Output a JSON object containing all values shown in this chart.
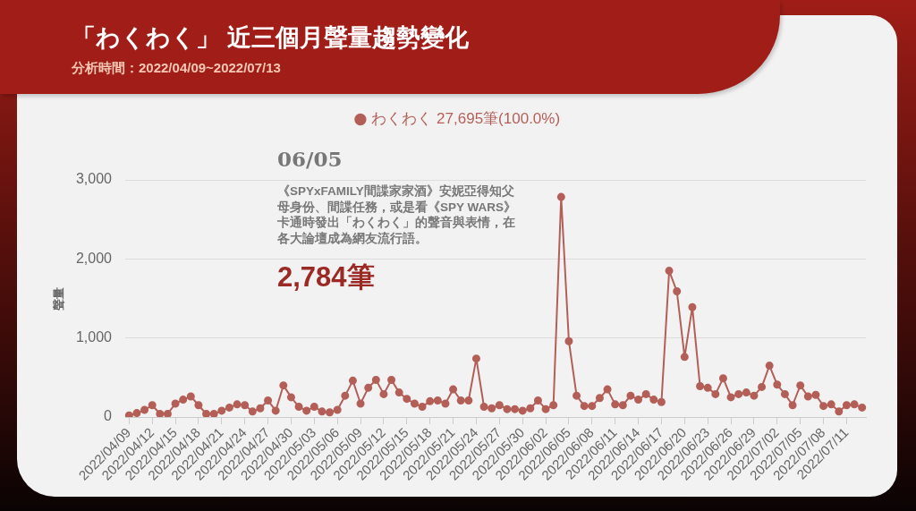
{
  "chart_data": {
    "type": "line",
    "title": "「わくわく」 近三個月聲量趨勢變化",
    "subtitle": "分析時間：2022/04/09~2022/07/13",
    "ylabel": "聲量",
    "categories": [
      "2022/04/09",
      null,
      null,
      "2022/04/12",
      null,
      null,
      "2022/04/15",
      null,
      null,
      "2022/04/18",
      null,
      null,
      "2022/04/21",
      null,
      null,
      "2022/04/24",
      null,
      null,
      "2022/04/27",
      null,
      null,
      "2022/04/30",
      null,
      null,
      "2022/05/03",
      null,
      null,
      "2022/05/06",
      null,
      null,
      "2022/05/09",
      null,
      null,
      "2022/05/12",
      null,
      null,
      "2022/05/15",
      null,
      null,
      "2022/05/18",
      null,
      null,
      "2022/05/21",
      null,
      null,
      "2022/05/24",
      null,
      null,
      "2022/05/27",
      null,
      null,
      "2022/05/30",
      null,
      null,
      "2022/06/02",
      null,
      null,
      "2022/06/05",
      null,
      null,
      "2022/06/08",
      null,
      null,
      "2022/06/11",
      null,
      null,
      "2022/06/14",
      null,
      null,
      "2022/06/17",
      null,
      null,
      "2022/06/20",
      null,
      null,
      "2022/06/23",
      null,
      null,
      "2022/06/26",
      null,
      null,
      "2022/06/29",
      null,
      null,
      "2022/07/02",
      null,
      null,
      "2022/07/05",
      null,
      null,
      "2022/07/08",
      null,
      null,
      "2022/07/11",
      null,
      null
    ],
    "series": [
      {
        "name": "わくわく 27,695筆(100.0%)",
        "color": "#b35f58",
        "values": [
          20,
          50,
          90,
          150,
          40,
          40,
          170,
          220,
          260,
          150,
          40,
          40,
          80,
          120,
          160,
          150,
          70,
          110,
          210,
          80,
          400,
          250,
          130,
          80,
          130,
          70,
          60,
          90,
          270,
          460,
          170,
          370,
          470,
          290,
          470,
          310,
          230,
          170,
          130,
          200,
          210,
          170,
          350,
          210,
          210,
          740,
          130,
          110,
          150,
          100,
          100,
          80,
          110,
          210,
          100,
          150,
          2784,
          960,
          270,
          140,
          140,
          240,
          350,
          160,
          150,
          270,
          220,
          290,
          220,
          190,
          1850,
          1590,
          760,
          1390,
          390,
          370,
          290,
          490,
          250,
          290,
          310,
          270,
          380,
          650,
          410,
          290,
          150,
          400,
          260,
          280,
          140,
          160,
          70,
          150,
          160,
          120
        ]
      }
    ],
    "ylim": [
      0,
      3000
    ],
    "yticks": [
      0,
      {
        "value": 1000,
        "label": "1,000"
      },
      {
        "value": 2000,
        "label": "2,000"
      },
      {
        "value": 3000,
        "label": "3,000"
      }
    ],
    "grid": "y",
    "legend": "top",
    "marker": "circle",
    "line_style": "solid",
    "annotations": [
      "06/05",
      "《SPYxFAMILY間諜家家酒》安妮亞得知父母身份、間諜任務，或是看《SPY WARS》卡通時發出「わくわく」的聲音與表情，在各大論壇成為網友流行語。",
      "2,784筆"
    ]
  }
}
